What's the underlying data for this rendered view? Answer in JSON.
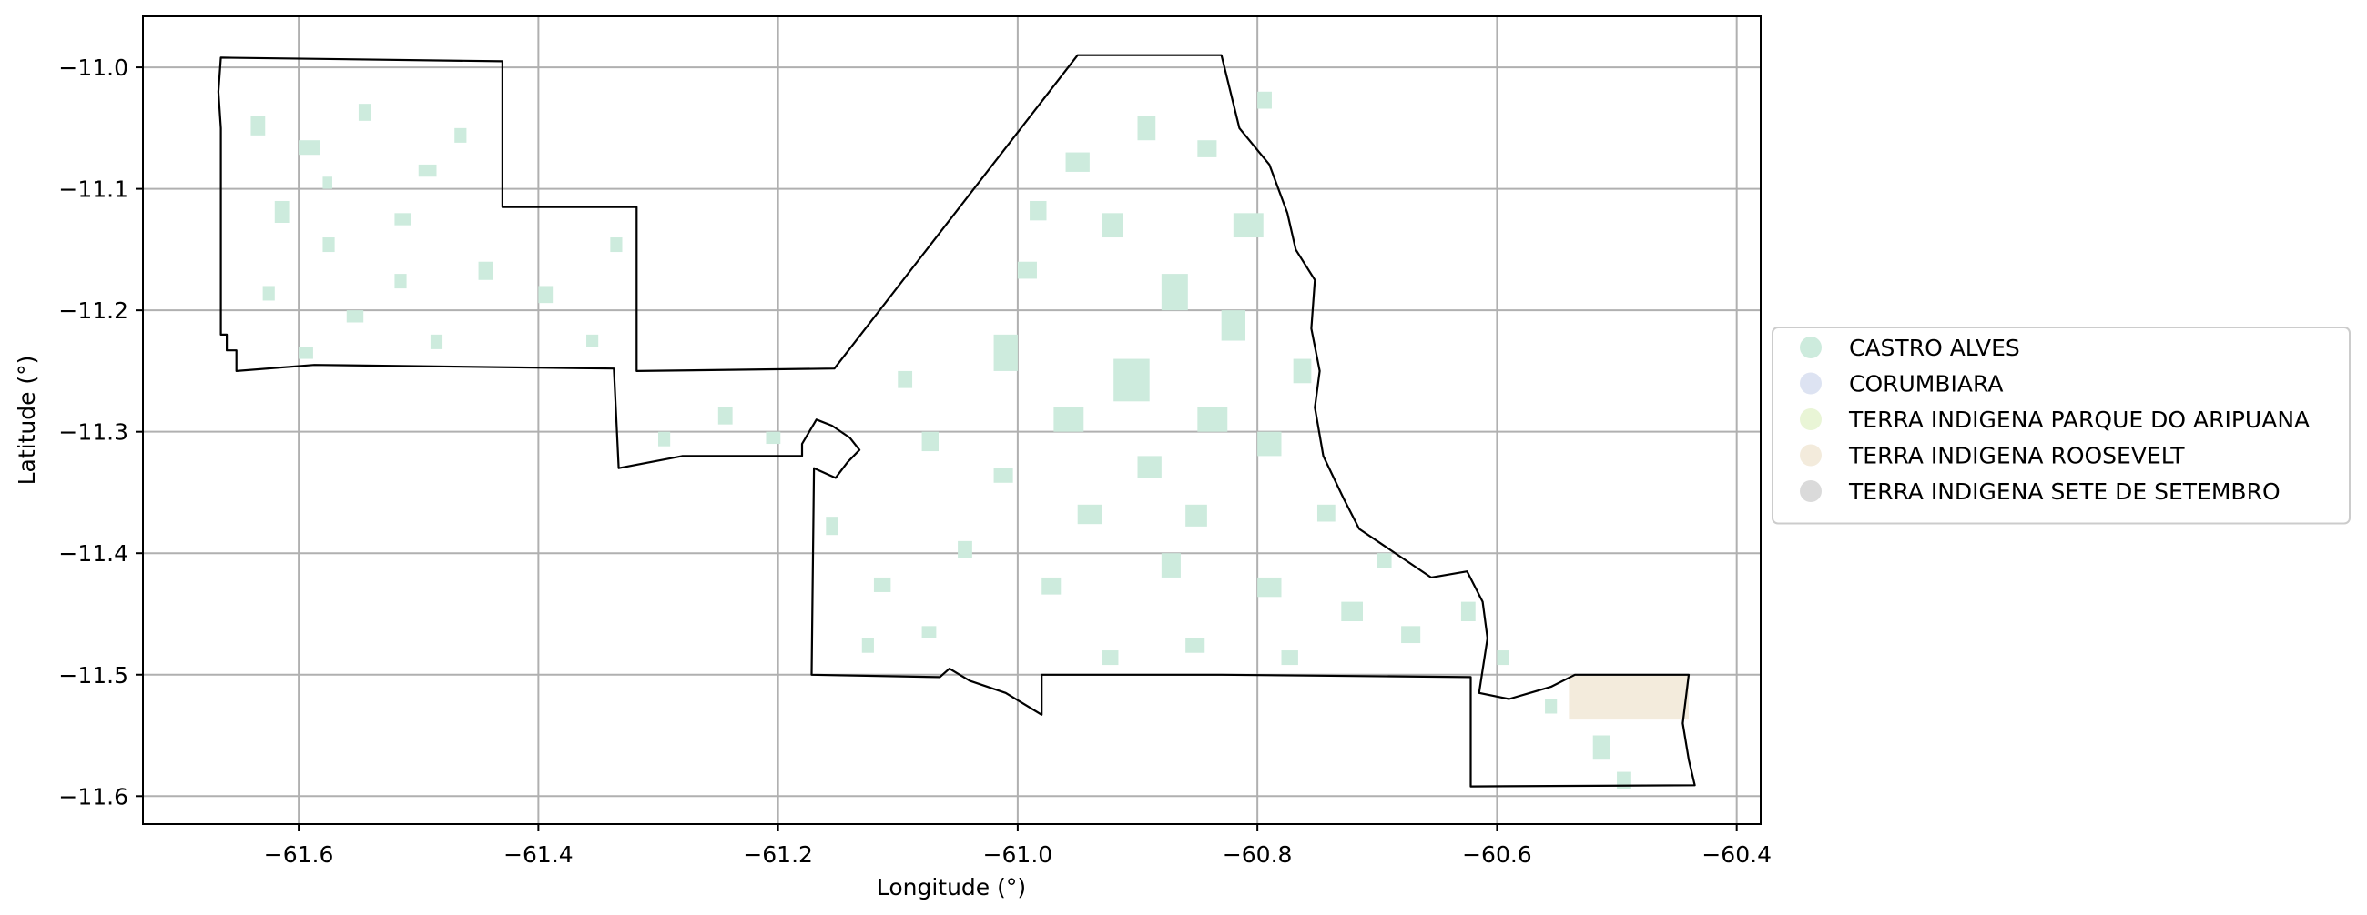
{
  "chart_data": {
    "type": "map",
    "xlabel": "Longitude (°)",
    "ylabel": "Latitude (°)",
    "xlim": [
      -61.73,
      -60.38
    ],
    "ylim": [
      -11.623,
      -10.958
    ],
    "grid": true,
    "x_ticks": [
      {
        "value": -61.6,
        "label": "−61.6"
      },
      {
        "value": -61.4,
        "label": "−61.4"
      },
      {
        "value": -61.2,
        "label": "−61.2"
      },
      {
        "value": -61.0,
        "label": "−61.0"
      },
      {
        "value": -60.8,
        "label": "−60.8"
      },
      {
        "value": -60.6,
        "label": "−60.6"
      },
      {
        "value": -60.4,
        "label": "−60.4"
      }
    ],
    "y_ticks": [
      {
        "value": -11.0,
        "label": "−11.0"
      },
      {
        "value": -11.1,
        "label": "−11.1"
      },
      {
        "value": -11.2,
        "label": "−11.2"
      },
      {
        "value": -11.3,
        "label": "−11.3"
      },
      {
        "value": -11.4,
        "label": "−11.4"
      },
      {
        "value": -11.5,
        "label": "−11.5"
      },
      {
        "value": -11.6,
        "label": "−11.6"
      }
    ],
    "legend_position": "right-center",
    "legend": [
      {
        "label": "CASTRO ALVES",
        "color": "#cdebdd"
      },
      {
        "label": "CORUMBIARA",
        "color": "#dde3f2"
      },
      {
        "label": "TERRA INDIGENA PARQUE DO ARIPUANA",
        "color": "#e9f5d6"
      },
      {
        "label": "TERRA INDIGENA ROOSEVELT",
        "color": "#f3ebdc"
      },
      {
        "label": "TERRA INDIGENA SETE DE SETEMBRO",
        "color": "#dadada"
      }
    ],
    "boundary": [
      [
        -61.665,
        -10.992
      ],
      [
        -61.43,
        -10.995
      ],
      [
        -61.43,
        -11.115
      ],
      [
        -61.318,
        -11.115
      ],
      [
        -61.318,
        -11.25
      ],
      [
        -61.153,
        -11.248
      ],
      [
        -60.95,
        -10.99
      ],
      [
        -60.83,
        -10.99
      ],
      [
        -60.815,
        -11.05
      ],
      [
        -60.79,
        -11.08
      ],
      [
        -60.775,
        -11.12
      ],
      [
        -60.768,
        -11.15
      ],
      [
        -60.752,
        -11.175
      ],
      [
        -60.755,
        -11.215
      ],
      [
        -60.748,
        -11.25
      ],
      [
        -60.752,
        -11.28
      ],
      [
        -60.745,
        -11.32
      ],
      [
        -60.728,
        -11.355
      ],
      [
        -60.715,
        -11.38
      ],
      [
        -60.655,
        -11.42
      ],
      [
        -60.625,
        -11.415
      ],
      [
        -60.612,
        -11.44
      ],
      [
        -60.608,
        -11.47
      ],
      [
        -60.615,
        -11.515
      ],
      [
        -60.59,
        -11.52
      ],
      [
        -60.555,
        -11.51
      ],
      [
        -60.535,
        -11.5
      ],
      [
        -60.44,
        -11.5
      ],
      [
        -60.445,
        -11.54
      ],
      [
        -60.44,
        -11.57
      ],
      [
        -60.435,
        -11.591
      ],
      [
        -60.622,
        -11.592
      ],
      [
        -60.622,
        -11.502
      ],
      [
        -60.83,
        -11.5
      ],
      [
        -60.98,
        -11.5
      ],
      [
        -60.98,
        -11.533
      ],
      [
        -61.01,
        -11.515
      ],
      [
        -61.04,
        -11.505
      ],
      [
        -61.057,
        -11.495
      ],
      [
        -61.065,
        -11.502
      ],
      [
        -61.172,
        -11.5
      ],
      [
        -61.17,
        -11.33
      ],
      [
        -61.152,
        -11.338
      ],
      [
        -61.142,
        -11.325
      ],
      [
        -61.132,
        -11.315
      ],
      [
        -61.14,
        -11.305
      ],
      [
        -61.155,
        -11.295
      ],
      [
        -61.168,
        -11.29
      ],
      [
        -61.18,
        -11.31
      ],
      [
        -61.18,
        -11.32
      ],
      [
        -61.28,
        -11.32
      ],
      [
        -61.333,
        -11.33
      ],
      [
        -61.337,
        -11.248
      ],
      [
        -61.587,
        -11.245
      ],
      [
        -61.652,
        -11.25
      ],
      [
        -61.652,
        -11.233
      ],
      [
        -61.66,
        -11.233
      ],
      [
        -61.66,
        -11.22
      ],
      [
        -61.665,
        -11.22
      ],
      [
        -61.665,
        -11.05
      ],
      [
        -61.667,
        -11.02
      ],
      [
        -61.665,
        -10.992
      ]
    ],
    "roosevelt_patch": [
      [
        -60.54,
        -11.5
      ],
      [
        -60.44,
        -11.5
      ],
      [
        -60.44,
        -11.537
      ],
      [
        -60.54,
        -11.537
      ]
    ],
    "castro_alves_patches": [
      [
        -61.64,
        -11.04,
        0.012,
        0.016
      ],
      [
        -61.6,
        -11.06,
        0.018,
        0.012
      ],
      [
        -61.55,
        -11.03,
        0.01,
        0.014
      ],
      [
        -61.5,
        -11.08,
        0.015,
        0.01
      ],
      [
        -61.62,
        -11.11,
        0.012,
        0.018
      ],
      [
        -61.58,
        -11.14,
        0.01,
        0.012
      ],
      [
        -61.52,
        -11.12,
        0.014,
        0.01
      ],
      [
        -61.47,
        -11.05,
        0.01,
        0.012
      ],
      [
        -61.45,
        -11.16,
        0.012,
        0.015
      ],
      [
        -61.63,
        -11.18,
        0.01,
        0.012
      ],
      [
        -61.56,
        -11.2,
        0.014,
        0.01
      ],
      [
        -61.49,
        -11.22,
        0.01,
        0.012
      ],
      [
        -61.4,
        -11.18,
        0.012,
        0.014
      ],
      [
        -61.36,
        -11.22,
        0.01,
        0.01
      ],
      [
        -61.34,
        -11.14,
        0.01,
        0.012
      ],
      [
        -61.6,
        -11.23,
        0.012,
        0.01
      ],
      [
        -61.52,
        -11.17,
        0.01,
        0.012
      ],
      [
        -61.58,
        -11.09,
        0.008,
        0.01
      ],
      [
        -61.25,
        -11.28,
        0.012,
        0.014
      ],
      [
        -61.3,
        -11.3,
        0.01,
        0.012
      ],
      [
        -61.21,
        -11.3,
        0.012,
        0.01
      ],
      [
        -61.16,
        -11.37,
        0.01,
        0.015
      ],
      [
        -61.12,
        -11.42,
        0.014,
        0.012
      ],
      [
        -61.08,
        -11.46,
        0.012,
        0.01
      ],
      [
        -61.13,
        -11.47,
        0.01,
        0.012
      ],
      [
        -61.05,
        -11.39,
        0.012,
        0.014
      ],
      [
        -61.02,
        -11.33,
        0.016,
        0.012
      ],
      [
        -61.08,
        -11.3,
        0.014,
        0.016
      ],
      [
        -61.1,
        -11.25,
        0.012,
        0.014
      ],
      [
        -61.02,
        -11.22,
        0.02,
        0.03
      ],
      [
        -60.97,
        -11.28,
        0.025,
        0.02
      ],
      [
        -60.92,
        -11.24,
        0.03,
        0.035
      ],
      [
        -60.88,
        -11.17,
        0.022,
        0.03
      ],
      [
        -60.93,
        -11.12,
        0.018,
        0.02
      ],
      [
        -60.96,
        -11.07,
        0.02,
        0.016
      ],
      [
        -60.9,
        -11.04,
        0.015,
        0.02
      ],
      [
        -60.85,
        -11.06,
        0.016,
        0.014
      ],
      [
        -60.82,
        -11.12,
        0.025,
        0.02
      ],
      [
        -60.83,
        -11.2,
        0.02,
        0.025
      ],
      [
        -60.85,
        -11.28,
        0.025,
        0.02
      ],
      [
        -60.8,
        -11.3,
        0.02,
        0.02
      ],
      [
        -60.77,
        -11.24,
        0.015,
        0.02
      ],
      [
        -60.9,
        -11.32,
        0.02,
        0.018
      ],
      [
        -60.95,
        -11.36,
        0.02,
        0.016
      ],
      [
        -60.88,
        -11.4,
        0.016,
        0.02
      ],
      [
        -60.8,
        -11.42,
        0.02,
        0.016
      ],
      [
        -60.75,
        -11.36,
        0.015,
        0.014
      ],
      [
        -60.73,
        -11.44,
        0.018,
        0.016
      ],
      [
        -60.68,
        -11.46,
        0.016,
        0.014
      ],
      [
        -60.63,
        -11.44,
        0.012,
        0.016
      ],
      [
        -60.98,
        -11.42,
        0.016,
        0.014
      ],
      [
        -60.93,
        -11.48,
        0.014,
        0.012
      ],
      [
        -60.86,
        -11.47,
        0.016,
        0.012
      ],
      [
        -60.78,
        -11.48,
        0.014,
        0.012
      ],
      [
        -61.0,
        -11.16,
        0.016,
        0.014
      ],
      [
        -60.99,
        -11.11,
        0.014,
        0.016
      ],
      [
        -60.8,
        -11.02,
        0.012,
        0.014
      ],
      [
        -60.86,
        -11.36,
        0.018,
        0.018
      ],
      [
        -60.7,
        -11.4,
        0.012,
        0.012
      ],
      [
        -60.6,
        -11.48,
        0.01,
        0.012
      ],
      [
        -60.52,
        -11.55,
        0.014,
        0.02
      ],
      [
        -60.5,
        -11.58,
        0.012,
        0.014
      ],
      [
        -60.56,
        -11.52,
        0.01,
        0.012
      ]
    ]
  }
}
